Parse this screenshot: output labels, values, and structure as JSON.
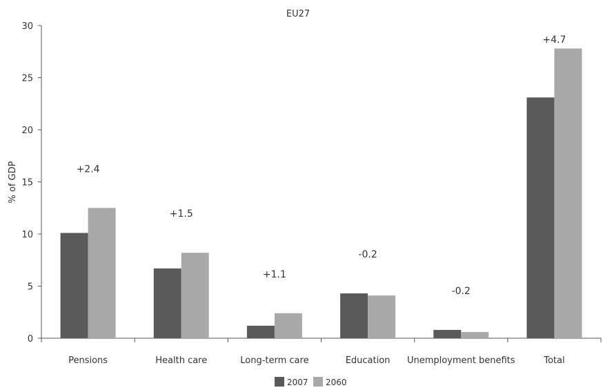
{
  "chart_data": {
    "type": "bar",
    "title": "EU27",
    "ylabel": "% of GDP",
    "xlabel": "",
    "ylim": [
      0,
      30
    ],
    "yticks": [
      0,
      5,
      10,
      15,
      20,
      25,
      30
    ],
    "grid": false,
    "legend_position": "bottom",
    "categories": [
      "Pensions",
      "Health care",
      "Long-term care",
      "Education",
      "Unemployment benefits",
      "Total"
    ],
    "series": [
      {
        "name": "2007",
        "color": "#5a5a5a",
        "values": [
          10.1,
          6.7,
          1.2,
          4.3,
          0.8,
          23.1
        ]
      },
      {
        "name": "2060",
        "color": "#a9a9a9",
        "values": [
          12.5,
          8.2,
          2.4,
          4.1,
          0.6,
          27.8
        ]
      }
    ],
    "annotations": [
      "+2.4",
      "+1.5",
      "+1.1",
      "-0.2",
      "-0.2",
      "+4.7"
    ]
  }
}
